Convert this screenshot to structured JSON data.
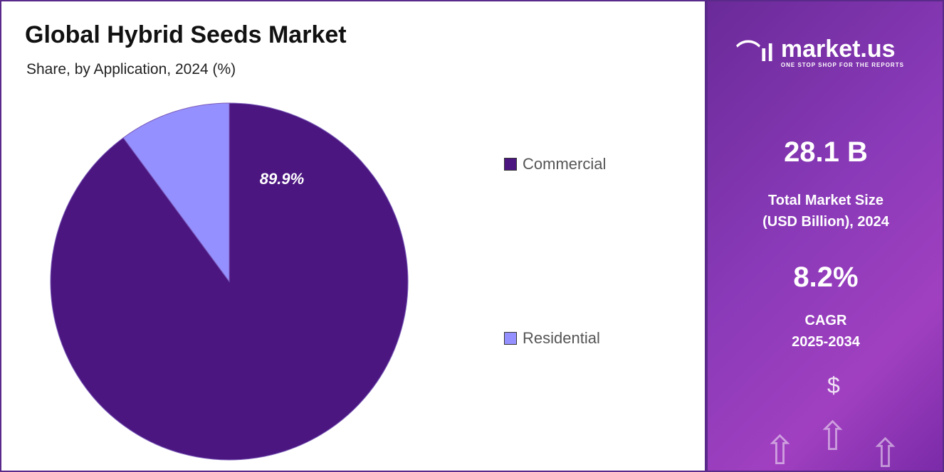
{
  "chart_data": {
    "type": "pie",
    "title": "Global Hybrid Seeds Market",
    "subtitle": "Share, by Application, 2024 (%)",
    "categories": [
      "Commercial",
      "Residential"
    ],
    "values": [
      89.9,
      10.1
    ],
    "colors": [
      "#4b1680",
      "#9590ff"
    ],
    "data_labels": [
      "89.9%",
      ""
    ],
    "legend_placement": "right"
  },
  "brand": {
    "name": "market.us",
    "tagline": "ONE STOP SHOP FOR THE REPORTS"
  },
  "stats": {
    "market_size": "28.1 B",
    "market_size_label_1": "Total Market Size",
    "market_size_label_2": "(USD Billion), 2024",
    "cagr": "8.2%",
    "cagr_label_1": "CAGR",
    "cagr_label_2": "2025-2034"
  }
}
